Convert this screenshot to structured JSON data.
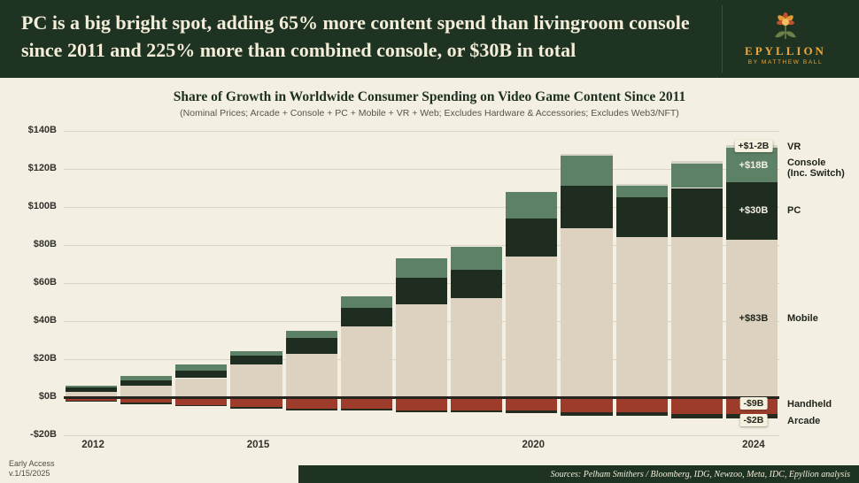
{
  "header": {
    "title_line1": "PC is a big bright spot, adding 65% more content spend than livingroom console",
    "title_line2": "since 2011 and 225% more than combined console, or $30B in total",
    "logo_name": "EPYLLION",
    "logo_tagline": "BY MATTHEW BALL"
  },
  "footer": {
    "early_access_line1": "Early Access",
    "early_access_line2": "v.1/15/2025",
    "sources": "Sources: Pelham Smithers / Bloomberg, IDG, Newzoo, Meta, IDC, Epyllion analysis"
  },
  "colors": {
    "header_bg": "#1e3321",
    "background": "#f4efe3",
    "accent_gold": "#eda93f"
  },
  "chart_data": {
    "type": "bar",
    "stacked": true,
    "title": "Share of Growth in Worldwide Consumer Spending on Video Game Content Since 2011",
    "subtitle": "(Nominal Prices; Arcade + Console + PC + Mobile + VR + Web; Excludes Hardware & Accessories; Excludes Web3/NFT)",
    "x": [
      2012,
      2013,
      2014,
      2015,
      2016,
      2017,
      2018,
      2019,
      2020,
      2021,
      2022,
      2023,
      2024
    ],
    "ylim": [
      -20,
      140
    ],
    "yticks": [
      {
        "value": 140,
        "label": "$140B"
      },
      {
        "value": 120,
        "label": "$120B"
      },
      {
        "value": 100,
        "label": "$100B"
      },
      {
        "value": 80,
        "label": "$80B"
      },
      {
        "value": 60,
        "label": "$60B"
      },
      {
        "value": 40,
        "label": "$40B"
      },
      {
        "value": 20,
        "label": "$20B"
      },
      {
        "value": 0,
        "label": "$0B"
      },
      {
        "value": -20,
        "label": "-$20B"
      }
    ],
    "x_ticks": [
      {
        "label": "2012",
        "index": 0
      },
      {
        "label": "2015",
        "index": 3
      },
      {
        "label": "2020",
        "index": 8
      },
      {
        "label": "2024",
        "index": 12
      }
    ],
    "stack_order": {
      "positive": [
        "mobile",
        "pc",
        "console",
        "vr"
      ],
      "negative": [
        "handheld",
        "arcade"
      ]
    },
    "series": [
      {
        "key": "mobile",
        "name": "Mobile",
        "color": "#ddd2bf",
        "values": [
          3,
          6,
          10,
          17,
          23,
          37,
          49,
          52,
          74,
          89,
          84,
          84,
          83
        ]
      },
      {
        "key": "pc",
        "name": "PC",
        "color": "#1f2d21",
        "values": [
          2,
          3,
          4,
          5,
          8,
          10,
          14,
          15,
          20,
          22,
          21,
          26,
          30
        ]
      },
      {
        "key": "console",
        "name": "Console (Inc. Switch)",
        "color": "#5d8166",
        "values": [
          1,
          2,
          3,
          2,
          4,
          6,
          10,
          12,
          14,
          16,
          6,
          13,
          18
        ]
      },
      {
        "key": "vr",
        "name": "VR",
        "color": "#d3d3c6",
        "values": [
          0,
          0,
          0,
          0,
          0,
          0,
          0,
          0,
          0,
          1,
          1,
          1,
          1.5
        ]
      },
      {
        "key": "handheld",
        "name": "Handheld",
        "color": "#9e3c2c",
        "values": [
          -2,
          -3,
          -4,
          -5,
          -6,
          -6,
          -7,
          -7,
          -7,
          -8,
          -8,
          -9,
          -9
        ]
      },
      {
        "key": "arcade",
        "name": "Arcade",
        "color": "#242c20",
        "values": [
          -0.5,
          -0.5,
          -0.5,
          -1,
          -1,
          -1,
          -1,
          -1,
          -1.5,
          -2,
          -2,
          -2,
          -2
        ]
      }
    ],
    "legend": [
      {
        "key": "vr",
        "lines": [
          "VR"
        ],
        "dy": 0
      },
      {
        "key": "console",
        "lines": [
          "Console",
          "(Inc. Switch)"
        ],
        "dy": 3
      },
      {
        "key": "pc",
        "lines": [
          "PC"
        ],
        "dy": 0
      },
      {
        "key": "mobile",
        "lines": [
          "Mobile"
        ],
        "dy": 0
      },
      {
        "key": "handheld",
        "lines": [
          "Handheld"
        ],
        "dy": -2
      },
      {
        "key": "arcade",
        "lines": [
          "Arcade"
        ],
        "dy": 5
      }
    ],
    "value_labels": [
      {
        "key": "vr",
        "text": "+$1-2B",
        "style": "badge",
        "dy": -1
      },
      {
        "key": "console",
        "text": "+$18B",
        "style": "light",
        "dy": 0
      },
      {
        "key": "pc",
        "text": "+$30B",
        "style": "light",
        "dy": 0
      },
      {
        "key": "mobile",
        "text": "+$83B",
        "style": "dark",
        "dy": 0
      },
      {
        "key": "handheld",
        "text": "-$9B",
        "style": "badge",
        "dy": -3
      },
      {
        "key": "arcade",
        "text": "-$2B",
        "style": "badge",
        "dy": 4
      }
    ]
  }
}
